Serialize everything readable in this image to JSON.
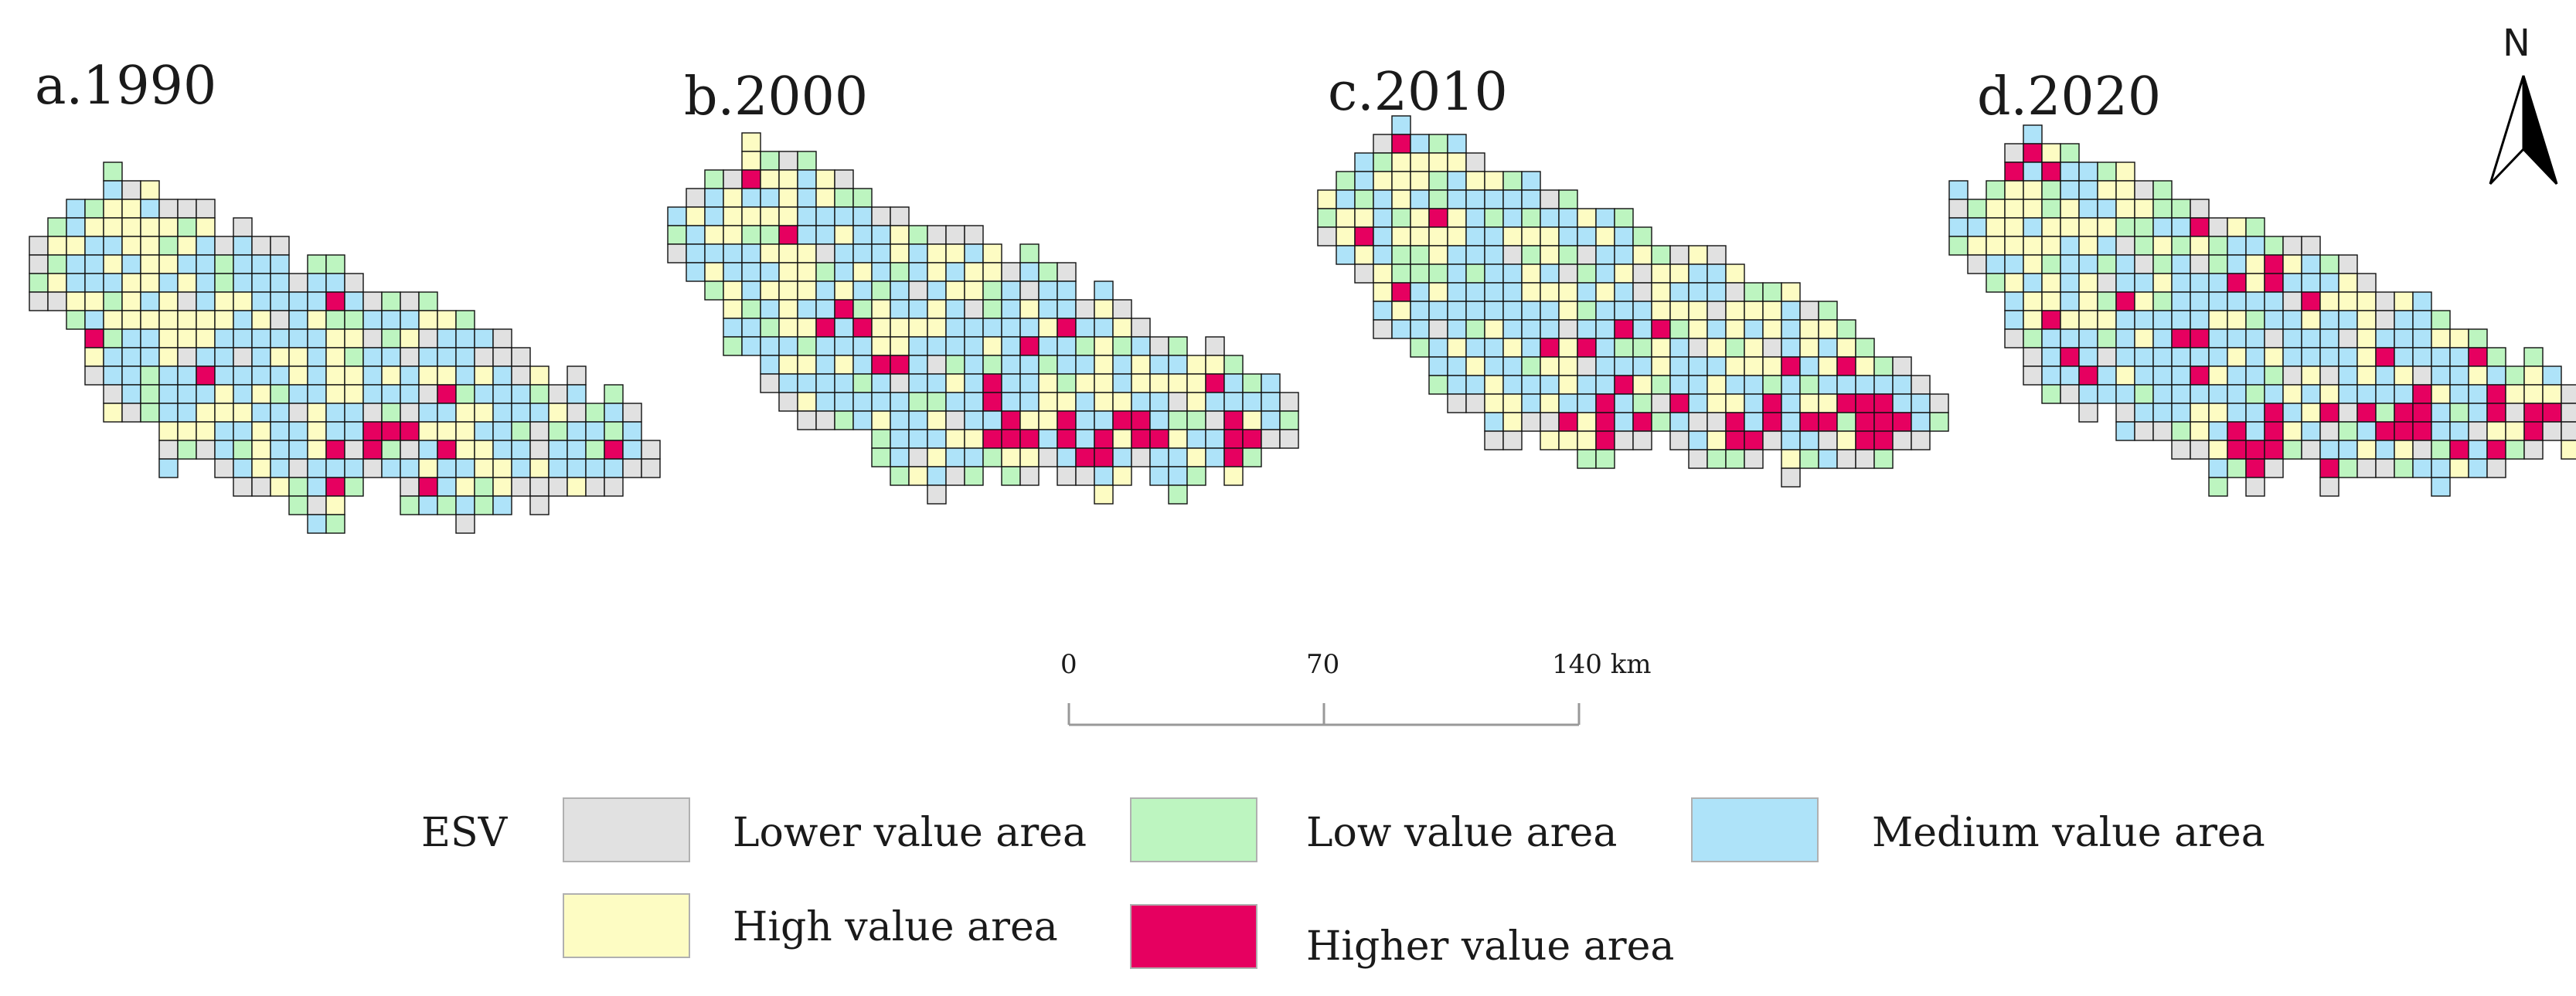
{
  "colors": {
    "lower": "#e1e1e1",
    "low": "#bdf5c0",
    "medium": "#aee3f9",
    "high": "#fdfcc3",
    "higher": "#e60060",
    "grid_line": "#111111",
    "scale_line": "#999999"
  },
  "panels": [
    {
      "label": "a.1990",
      "year": 1990
    },
    {
      "label": "b.2000",
      "year": 2000
    },
    {
      "label": "c.2010",
      "year": 2010
    },
    {
      "label": "d.2020",
      "year": 2020
    }
  ],
  "north_arrow": {
    "label": "N",
    "icon": "north-arrow-icon"
  },
  "scale_bar": {
    "ticks": [
      "0",
      "70",
      "140 km"
    ],
    "values_km": [
      0,
      70,
      140
    ]
  },
  "legend": {
    "title": "ESV",
    "items": [
      {
        "key": "lower",
        "label": "Lower value area"
      },
      {
        "key": "low",
        "label": "Low value area"
      },
      {
        "key": "medium",
        "label": "Medium value area"
      },
      {
        "key": "high",
        "label": "High value area"
      },
      {
        "key": "higher",
        "label": "Higher value area"
      }
    ]
  }
}
